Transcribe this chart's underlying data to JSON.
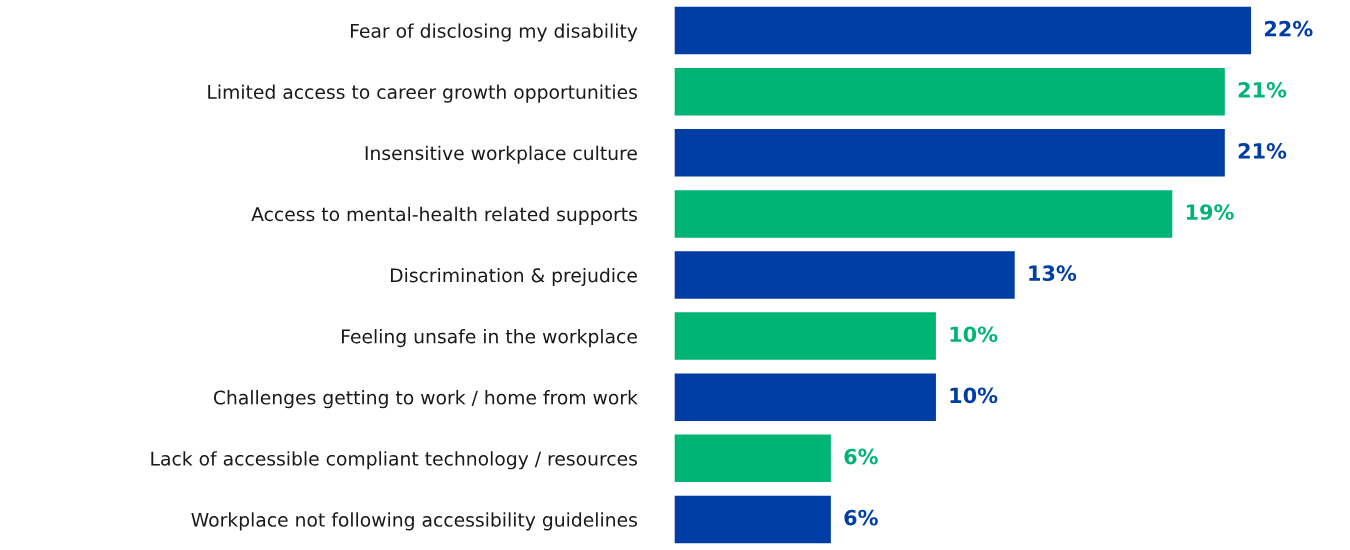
{
  "chart_data": {
    "type": "bar",
    "orientation": "horizontal",
    "categories": [
      "Fear of disclosing my disability",
      "Limited access to career growth opportunities",
      "Insensitive workplace culture",
      "Access to mental-health related supports",
      "Discrimination & prejudice",
      "Feeling unsafe in the workplace",
      "Challenges getting to work / home from work",
      "Lack of accessible compliant technology / resources",
      "Workplace not following accessibility guidelines"
    ],
    "values": [
      22,
      21,
      21,
      19,
      13,
      10,
      10,
      6,
      6
    ],
    "colors": [
      "#003da5",
      "#00b574",
      "#003da5",
      "#00b574",
      "#003da5",
      "#00b574",
      "#003da5",
      "#00b574",
      "#003da5"
    ],
    "value_labels": [
      "22%",
      "21%",
      "21%",
      "19%",
      "13%",
      "10%",
      "10%",
      "6%",
      "6%"
    ],
    "grid": false,
    "legend": false
  }
}
